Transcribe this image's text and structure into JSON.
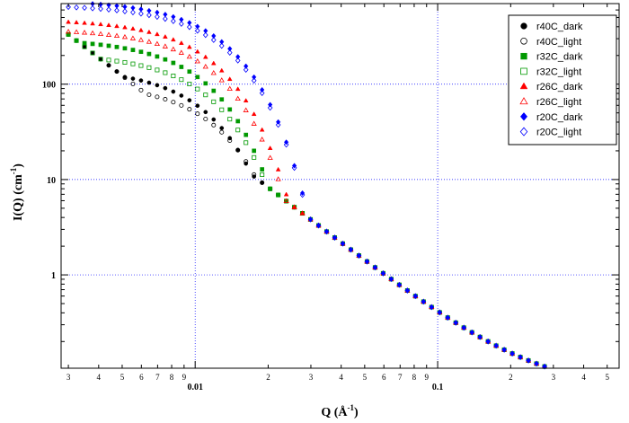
{
  "chart_data": {
    "type": "scatter",
    "title": "",
    "xlabel": {
      "base": "Q (Å",
      "sup": "-1",
      "tail": ")"
    },
    "ylabel": {
      "base": "I(Q) (cm",
      "sup": "-1",
      "tail": ")"
    },
    "xscale": "log",
    "yscale": "log",
    "xlim": [
      0.0028,
      0.56
    ],
    "ylim": [
      0.105,
      700
    ],
    "grid": true,
    "legend_position": "top-right",
    "x_major_ticks": [
      {
        "value": 0.01,
        "label": "0.01"
      },
      {
        "value": 0.1,
        "label": "0.1"
      }
    ],
    "x_minor_ticks": [
      {
        "value": 0.003,
        "label": "3"
      },
      {
        "value": 0.004,
        "label": "4"
      },
      {
        "value": 0.005,
        "label": "5"
      },
      {
        "value": 0.006,
        "label": "6"
      },
      {
        "value": 0.007,
        "label": "7"
      },
      {
        "value": 0.008,
        "label": "8"
      },
      {
        "value": 0.009,
        "label": "9"
      },
      {
        "value": 0.02,
        "label": "2"
      },
      {
        "value": 0.03,
        "label": "3"
      },
      {
        "value": 0.04,
        "label": "4"
      },
      {
        "value": 0.05,
        "label": "5"
      },
      {
        "value": 0.06,
        "label": "6"
      },
      {
        "value": 0.07,
        "label": "7"
      },
      {
        "value": 0.08,
        "label": "8"
      },
      {
        "value": 0.09,
        "label": "9"
      },
      {
        "value": 0.2,
        "label": "2"
      },
      {
        "value": 0.3,
        "label": "3"
      },
      {
        "value": 0.4,
        "label": "4"
      },
      {
        "value": 0.5,
        "label": "5"
      }
    ],
    "y_major_ticks": [
      {
        "value": 1,
        "label": "1"
      },
      {
        "value": 10,
        "label": "10"
      },
      {
        "value": 100,
        "label": "100"
      }
    ],
    "series": [
      {
        "name": "r40C_dark",
        "marker": "circle",
        "filled": true,
        "color": "#000000",
        "I0": 150,
        "Rg": 163
      },
      {
        "name": "r40C_light",
        "marker": "circle",
        "filled": false,
        "color": "#000000",
        "I0": 105,
        "Rg": 148
      },
      {
        "name": "r32C_dark",
        "marker": "square",
        "filled": true,
        "color": "#009900",
        "I0": 300,
        "Rg": 163
      },
      {
        "name": "r32C_light",
        "marker": "square",
        "filled": false,
        "color": "#009900",
        "I0": 210,
        "Rg": 157
      },
      {
        "name": "r26C_dark",
        "marker": "triangle",
        "filled": true,
        "color": "#ff0000",
        "I0": 480,
        "Rg": 150
      },
      {
        "name": "r26C_light",
        "marker": "triangle",
        "filled": false,
        "color": "#ff0000",
        "I0": 380,
        "Rg": 150
      },
      {
        "name": "r20C_dark",
        "marker": "diamond",
        "filled": true,
        "color": "#0000ff",
        "I0": 760,
        "Rg": 135
      },
      {
        "name": "r20C_light",
        "marker": "diamond",
        "filled": false,
        "color": "#0000ff",
        "I0": 680,
        "Rg": 134
      }
    ],
    "shared_high_q_tail": {
      "A": 0.004,
      "n": 1.95,
      "c": 0.06,
      "q_min": 0.003,
      "q_max": 0.55,
      "points_per_decade": 30
    }
  }
}
